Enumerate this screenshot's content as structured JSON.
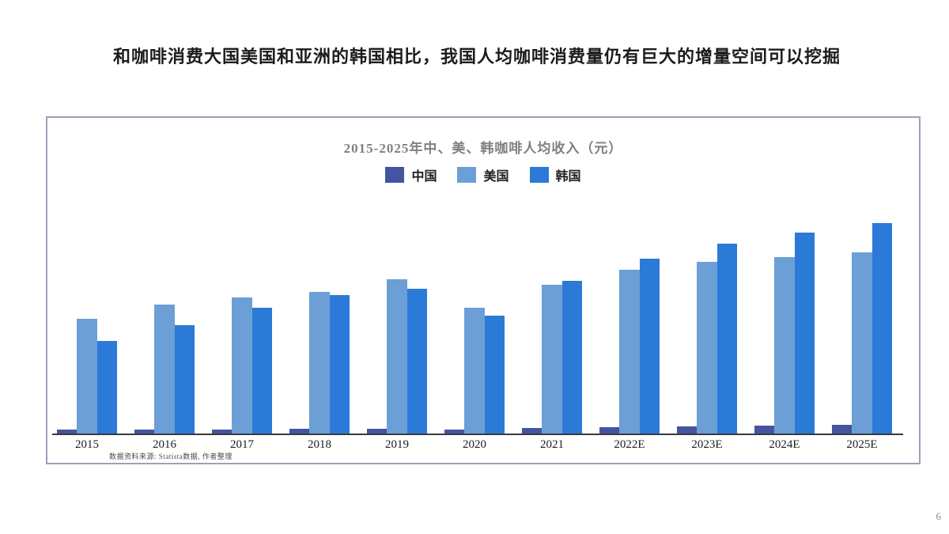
{
  "page": {
    "heading": "和咖啡消费大国美国和亚洲的韩国相比，我国人均咖啡消费量仍有巨大的增量空间可以挖掘",
    "source_note": "数据资料来源: Statista数据, 作者整理",
    "page_number": "6"
  },
  "chart_data": {
    "type": "bar",
    "title": "2015-2025年中、美、韩咖啡人均收入（元）",
    "categories": [
      "2015",
      "2016",
      "2017",
      "2018",
      "2019",
      "2020",
      "2021",
      "2022E",
      "2023E",
      "2024E",
      "2025E"
    ],
    "series": [
      {
        "name": "中国",
        "key": "china",
        "color": "#44549e",
        "values": [
          9,
          9,
          10,
          12,
          12,
          10,
          14,
          16,
          17,
          20,
          22
        ]
      },
      {
        "name": "美国",
        "key": "usa",
        "color": "#6b9fd6",
        "values": [
          290,
          326,
          344,
          358,
          390,
          318,
          376,
          414,
          434,
          446,
          458
        ]
      },
      {
        "name": "韩国",
        "key": "korea",
        "color": "#2b7ad8",
        "values": [
          234,
          274,
          318,
          350,
          366,
          298,
          386,
          442,
          480,
          508,
          532
        ]
      }
    ],
    "unit": "元",
    "ylim": [
      0,
      560
    ],
    "grid": false,
    "legend_position": "top",
    "axis_color": "#3a3a3a"
  }
}
